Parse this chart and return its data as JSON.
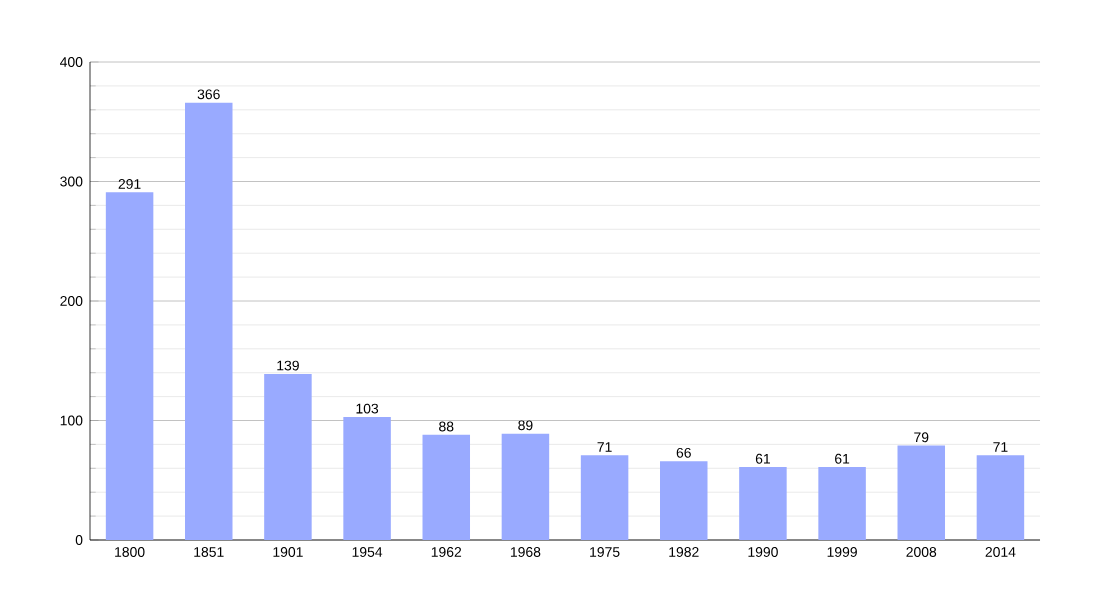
{
  "chart_data": {
    "type": "bar",
    "categories": [
      "1800",
      "1851",
      "1901",
      "1954",
      "1962",
      "1968",
      "1975",
      "1982",
      "1990",
      "1999",
      "2008",
      "2014"
    ],
    "values": [
      291,
      366,
      139,
      103,
      88,
      89,
      71,
      66,
      61,
      61,
      79,
      71
    ],
    "color": "#99aaff",
    "ylim": [
      0,
      400
    ],
    "yticks": [
      0,
      100,
      200,
      300,
      400
    ],
    "grid": "y",
    "data_labels": true
  }
}
